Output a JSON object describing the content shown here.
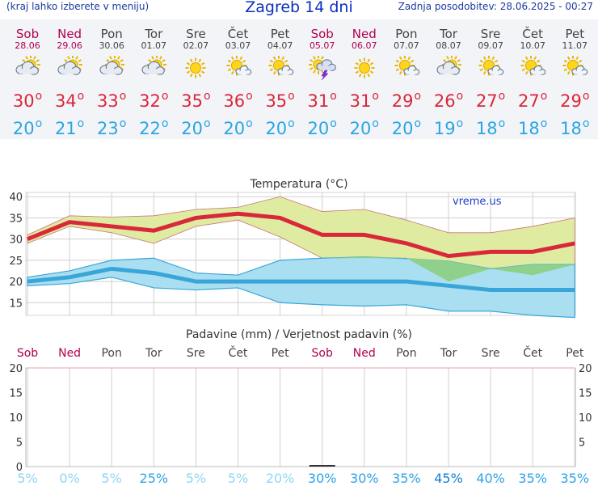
{
  "header": {
    "menu_hint": "(kraj lahko izberete v meniju)",
    "title": "Zagreb 14 dni",
    "updated": "Zadnja posodobitev: 28.06.2025 - 00:27"
  },
  "colors": {
    "weekend": "#b0004e",
    "max_temp": "#d8283a",
    "min_temp": "#29a6e3",
    "max_band": "#dfeba0",
    "min_band": "#a9dff0",
    "overlap_band": "#8fd08a"
  },
  "days": [
    {
      "name": "Sob",
      "date": "28.06",
      "weekend": true,
      "icon": "partly-cloudy-icon",
      "tmax": "30",
      "tmin": "20",
      "prob": "5%"
    },
    {
      "name": "Ned",
      "date": "29.06",
      "weekend": true,
      "icon": "partly-cloudy-icon",
      "tmax": "34",
      "tmin": "21",
      "prob": "0%"
    },
    {
      "name": "Pon",
      "date": "30.06",
      "weekend": false,
      "icon": "partly-cloudy-icon",
      "tmax": "33",
      "tmin": "23",
      "prob": "5%"
    },
    {
      "name": "Tor",
      "date": "01.07",
      "weekend": false,
      "icon": "partly-cloudy-icon",
      "tmax": "32",
      "tmin": "22",
      "prob": "25%"
    },
    {
      "name": "Sre",
      "date": "02.07",
      "weekend": false,
      "icon": "sun-icon",
      "tmax": "35",
      "tmin": "20",
      "prob": "5%"
    },
    {
      "name": "Čet",
      "date": "03.07",
      "weekend": false,
      "icon": "sun-small-cloud-icon",
      "tmax": "36",
      "tmin": "20",
      "prob": "5%"
    },
    {
      "name": "Pet",
      "date": "04.07",
      "weekend": false,
      "icon": "sun-small-cloud-icon",
      "tmax": "35",
      "tmin": "20",
      "prob": "20%"
    },
    {
      "name": "Sob",
      "date": "05.07",
      "weekend": true,
      "icon": "thunderstorm-icon",
      "tmax": "31",
      "tmin": "20",
      "prob": "30%"
    },
    {
      "name": "Ned",
      "date": "06.07",
      "weekend": true,
      "icon": "sun-icon",
      "tmax": "31",
      "tmin": "20",
      "prob": "30%"
    },
    {
      "name": "Pon",
      "date": "07.07",
      "weekend": false,
      "icon": "sun-small-cloud-icon",
      "tmax": "29",
      "tmin": "20",
      "prob": "35%"
    },
    {
      "name": "Tor",
      "date": "08.07",
      "weekend": false,
      "icon": "partly-cloudy-icon",
      "tmax": "26",
      "tmin": "19",
      "prob": "45%"
    },
    {
      "name": "Sre",
      "date": "09.07",
      "weekend": false,
      "icon": "sun-small-cloud-icon",
      "tmax": "27",
      "tmin": "18",
      "prob": "40%"
    },
    {
      "name": "Čet",
      "date": "10.07",
      "weekend": false,
      "icon": "sun-small-cloud-icon",
      "tmax": "27",
      "tmin": "18",
      "prob": "35%"
    },
    {
      "name": "Pet",
      "date": "11.07",
      "weekend": false,
      "icon": "sun-small-cloud-icon",
      "tmax": "29",
      "tmin": "18",
      "prob": "35%"
    }
  ],
  "chart_data": [
    {
      "type": "line",
      "title": "Temperatura (°C)",
      "watermark": "vreme.us",
      "x": [
        "28.06",
        "29.06",
        "30.06",
        "01.07",
        "02.07",
        "03.07",
        "04.07",
        "05.07",
        "06.07",
        "07.07",
        "08.07",
        "09.07",
        "10.07",
        "11.07"
      ],
      "ylim": [
        12,
        41
      ],
      "yticks": [
        15,
        20,
        25,
        30,
        35,
        40
      ],
      "grid": true,
      "series": [
        {
          "values": [
            30,
            34,
            33,
            32,
            35,
            36,
            35,
            31,
            31,
            29,
            26,
            27,
            27,
            29
          ]
        },
        {
          "values": [
            20,
            21,
            23,
            22,
            20,
            20,
            20,
            20,
            20,
            20,
            19,
            18,
            18,
            18
          ]
        }
      ],
      "bands": [
        {
          "upper": [
            31,
            35.5,
            35.2,
            35.5,
            37,
            37.5,
            40,
            36.5,
            37,
            34.5,
            31.5,
            31.5,
            33,
            35
          ],
          "lower": [
            29,
            33,
            31.5,
            29,
            33,
            34.5,
            30.5,
            25.5,
            25.5,
            25.5,
            20,
            23,
            21.5,
            24
          ]
        },
        {
          "upper": [
            21,
            22.5,
            25,
            25.5,
            22,
            21.5,
            25,
            25.5,
            25.8,
            25.4,
            24.8,
            23,
            24,
            24
          ],
          "lower": [
            19,
            19.5,
            21,
            18.5,
            18,
            18.5,
            15,
            14.5,
            14.2,
            14.5,
            13,
            13,
            12,
            11.5
          ]
        }
      ]
    },
    {
      "type": "bar",
      "title": "Padavine (mm) / Verjetnost padavin (%)",
      "categories": [
        "28.06",
        "29.06",
        "30.06",
        "01.07",
        "02.07",
        "03.07",
        "04.07",
        "05.07",
        "06.07",
        "07.07",
        "08.07",
        "09.07",
        "10.07",
        "11.07"
      ],
      "values": [
        0,
        0,
        0,
        0,
        0,
        0,
        0,
        0.1,
        0,
        0,
        0,
        0,
        0,
        0
      ],
      "ylim": [
        0,
        20
      ],
      "yticks": [
        0,
        5,
        10,
        15,
        20
      ],
      "probability": [
        5,
        0,
        5,
        25,
        5,
        5,
        20,
        30,
        30,
        35,
        45,
        40,
        35,
        35
      ]
    }
  ]
}
